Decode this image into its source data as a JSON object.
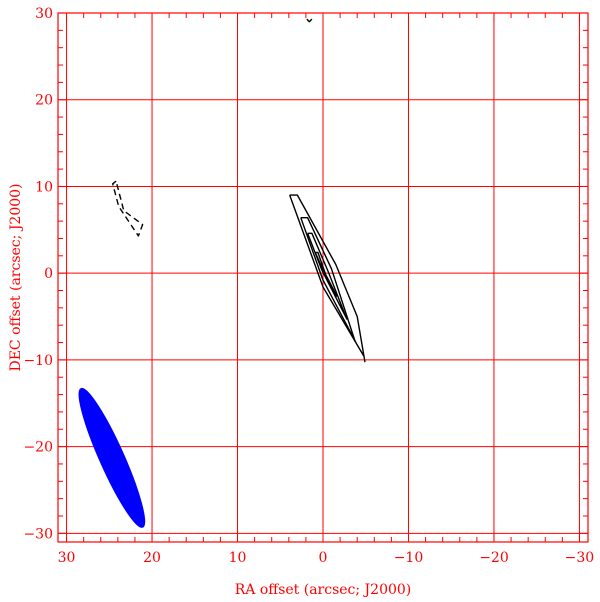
{
  "chart_data": {
    "type": "contour",
    "xlabel": "RA offset (arcsec; J2000)",
    "ylabel": "DEC offset (arcsec; J2000)",
    "xlim": [
      31,
      -31
    ],
    "ylim": [
      -31,
      30
    ],
    "x_ticks": [
      30,
      20,
      10,
      0,
      -10,
      -20,
      -30
    ],
    "y_ticks": [
      30,
      20,
      10,
      0,
      -10,
      -20,
      -30
    ],
    "grid": true,
    "colors": {
      "axes": "#ff0000",
      "grid": "#ff0000",
      "contour": "#000000",
      "beam": "#0000ff"
    },
    "beam": {
      "center_ra": 24.7,
      "center_dec": -21.3,
      "major_arcsec": 17.5,
      "minor_arcsec": 2.8,
      "orientation": "tilted, parallel to the contours"
    },
    "contours": [
      {
        "level": "lowest positive",
        "style": "solid",
        "points": [
          [
            3.9,
            9.0
          ],
          [
            3.0,
            9.0
          ],
          [
            -1.5,
            1.0
          ],
          [
            -4.0,
            -5.0
          ],
          [
            -4.9,
            -10.2
          ],
          [
            -4.8,
            -9.6
          ],
          [
            0.0,
            -1.6
          ],
          [
            3.9,
            9.0
          ]
        ]
      },
      {
        "level": "second",
        "style": "solid",
        "points": [
          [
            2.6,
            6.4
          ],
          [
            1.8,
            6.4
          ],
          [
            -1.0,
            0.5
          ],
          [
            -3.7,
            -7.7
          ],
          [
            -3.8,
            -7.9
          ],
          [
            0.0,
            -0.8
          ],
          [
            2.6,
            6.4
          ]
        ]
      },
      {
        "level": "third",
        "style": "solid",
        "points": [
          [
            1.8,
            4.6
          ],
          [
            1.3,
            4.6
          ],
          [
            -0.6,
            0.2
          ],
          [
            -2.7,
            -5.1
          ],
          [
            -2.8,
            -5.3
          ],
          [
            0.1,
            0.3
          ],
          [
            1.8,
            4.6
          ]
        ]
      },
      {
        "level": "fourth",
        "style": "solid",
        "points": [
          [
            0.9,
            2.4
          ],
          [
            0.6,
            2.4
          ],
          [
            -0.4,
            -0.4
          ],
          [
            -1.5,
            -2.7
          ],
          [
            -1.6,
            -2.6
          ],
          [
            0.2,
            0.8
          ],
          [
            0.9,
            2.4
          ]
        ]
      },
      {
        "level": "negative",
        "style": "dashed",
        "points": [
          [
            24.2,
            10.6
          ],
          [
            24.6,
            10.3
          ],
          [
            23.9,
            7.7
          ],
          [
            22.0,
            4.9
          ],
          [
            21.6,
            4.3
          ],
          [
            21.1,
            5.6
          ],
          [
            23.3,
            7.2
          ],
          [
            24.2,
            10.6
          ]
        ]
      },
      {
        "level": "spike",
        "style": "solid",
        "points": [
          [
            1.9,
            29.3
          ],
          [
            1.6,
            29.0
          ],
          [
            1.3,
            29.3
          ]
        ]
      }
    ]
  }
}
